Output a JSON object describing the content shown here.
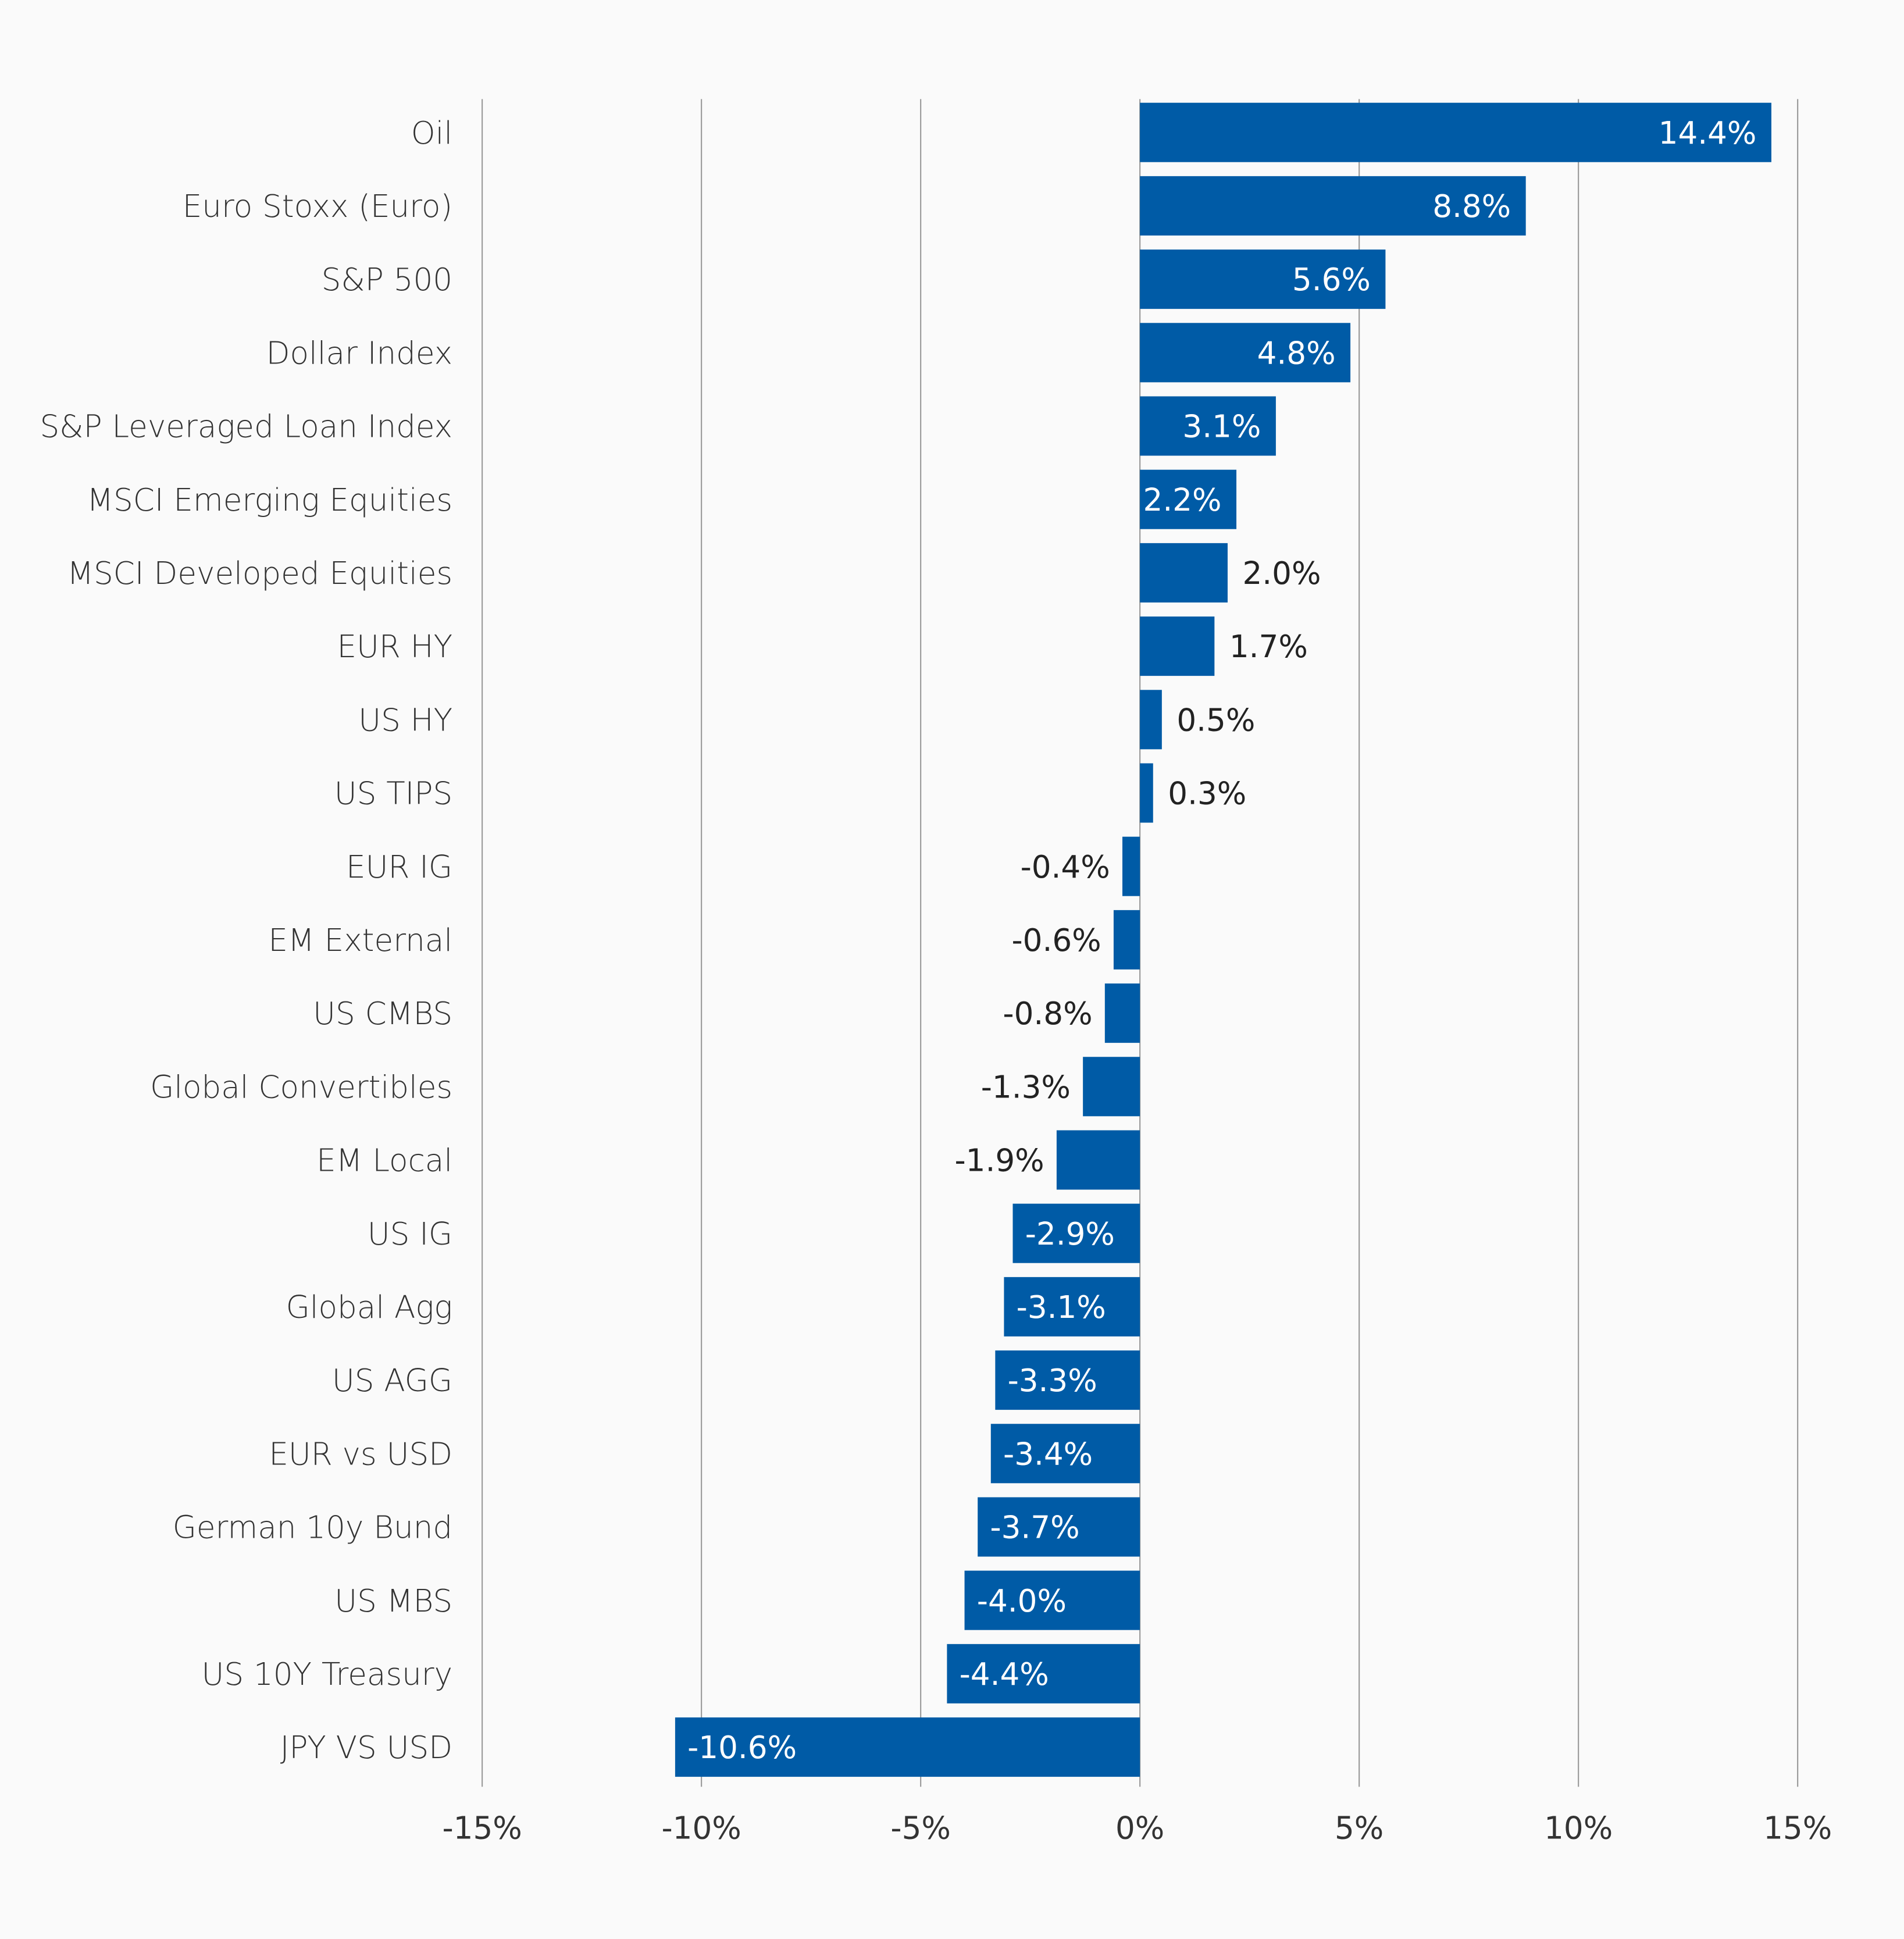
{
  "chart_data": {
    "type": "bar",
    "orientation": "horizontal",
    "title": "",
    "xlabel": "",
    "ylabel": "",
    "xlim": [
      -15,
      15
    ],
    "grid": true,
    "bar_color": "#005BA6",
    "background": "#FAFAFA",
    "x_ticks": [
      "-15%",
      "-10%",
      "-5%",
      "0%",
      "5%",
      "10%",
      "15%"
    ],
    "x_tick_values": [
      -15,
      -10,
      -5,
      0,
      5,
      10,
      15
    ],
    "categories": [
      "Oil",
      "Euro Stoxx (Euro)",
      "S&P 500",
      "Dollar Index",
      "S&P Leveraged Loan Index",
      "MSCI Emerging Equities",
      "MSCI Developed Equities",
      "EUR HY",
      "US HY",
      "US TIPS",
      "EUR IG",
      "EM External",
      "US CMBS",
      "Global Convertibles",
      "EM Local",
      "US IG",
      "Global Agg",
      "US AGG",
      "EUR vs USD",
      "German 10y Bund",
      "US MBS",
      "US 10Y Treasury",
      "JPY VS USD"
    ],
    "values": [
      14.4,
      8.8,
      5.6,
      4.8,
      3.1,
      2.2,
      2.0,
      1.7,
      0.5,
      0.3,
      -0.4,
      -0.6,
      -0.8,
      -1.3,
      -1.9,
      -2.9,
      -3.1,
      -3.3,
      -3.4,
      -3.7,
      -4.0,
      -4.4,
      -10.6
    ],
    "data_labels": [
      "14.4%",
      "8.8%",
      "5.6%",
      "4.8%",
      "3.1%",
      "2.2%",
      "2.0%",
      "1.7%",
      "0.5%",
      "0.3%",
      "-0.4%",
      "-0.6%",
      "-0.8%",
      "-1.3%",
      "-1.9%",
      "-2.9%",
      "-3.1%",
      "-3.3%",
      "-3.4%",
      "-3.7%",
      "-4.0%",
      "-4.4%",
      "-10.6%"
    ]
  }
}
